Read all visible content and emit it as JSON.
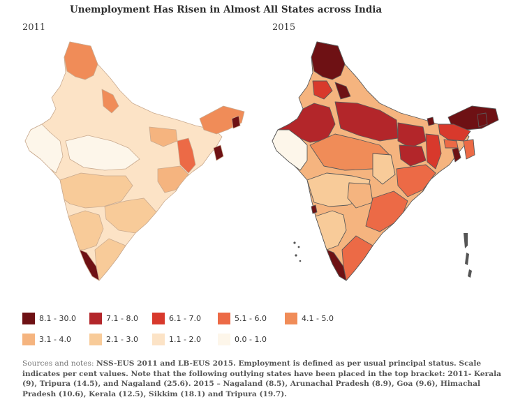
{
  "title": "Unemployment Has Risen in Almost All States across India",
  "maps": [
    {
      "year": "2011"
    },
    {
      "year": "2015"
    }
  ],
  "legend": [
    {
      "label": "8.1 - 30.0",
      "color": "#6e1114"
    },
    {
      "label": "7.1 - 8.0",
      "color": "#b3262a"
    },
    {
      "label": "6.1 - 7.0",
      "color": "#d8392c"
    },
    {
      "label": "5.1 - 6.0",
      "color": "#ec6a46"
    },
    {
      "label": "4.1 - 5.0",
      "color": "#f08c58"
    },
    {
      "label": "3.1 - 4.0",
      "color": "#f5b47f"
    },
    {
      "label": "2.1 - 3.0",
      "color": "#f8cb99"
    },
    {
      "label": "1.1 - 2.0",
      "color": "#fce3c6"
    },
    {
      "label": "0.0 - 1.0",
      "color": "#fdf6ea"
    }
  ],
  "notes": {
    "lead": "Sources and notes:",
    "body": "NSS-EUS 2011 and LB-EUS 2015. Employment is defined as per usual principal status. Scale indicates per cent values. Note that the following outlying states have been placed in the top bracket: 2011- Kerala (9), Tripura (14.5), and Nagaland (25.6). 2015 – Nagaland (8.5), Arunachal Pradesh (8.9), Goa (9.6), Himachal Pradesh (10.6), Kerala (12.5), Sikkim (18.1) and Tripura (19.7)."
  }
}
